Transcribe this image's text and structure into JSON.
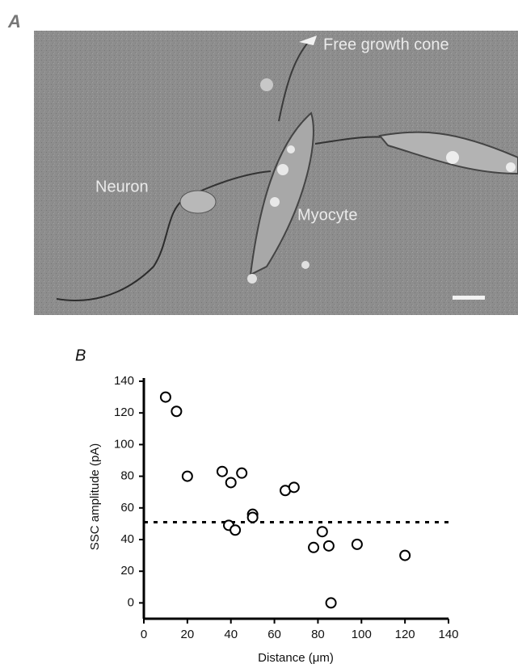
{
  "panel_a": {
    "label": "A",
    "annotations": [
      "Free growth cone",
      "Neuron",
      "Myocyte"
    ]
  },
  "chart_data": {
    "type": "scatter",
    "panel_label": "B",
    "x_label": "Distance (μm)",
    "y_label": "SSC amplitude (pA)",
    "x": [
      10,
      15,
      20,
      36,
      40,
      45,
      39,
      42,
      50,
      50,
      65,
      69,
      78,
      82,
      85,
      86,
      98,
      120
    ],
    "values": [
      130,
      121,
      80,
      83,
      76,
      82,
      49,
      46,
      56,
      54,
      71,
      73,
      35,
      45,
      36,
      0,
      37,
      30
    ],
    "reference_line": 51,
    "xlim": [
      0,
      140
    ],
    "ylim": [
      -10,
      140
    ],
    "xticks": [
      0,
      20,
      40,
      60,
      80,
      100,
      120,
      140
    ],
    "yticks": [
      0,
      20,
      40,
      60,
      80,
      100,
      120,
      140
    ],
    "color": "#000000"
  }
}
